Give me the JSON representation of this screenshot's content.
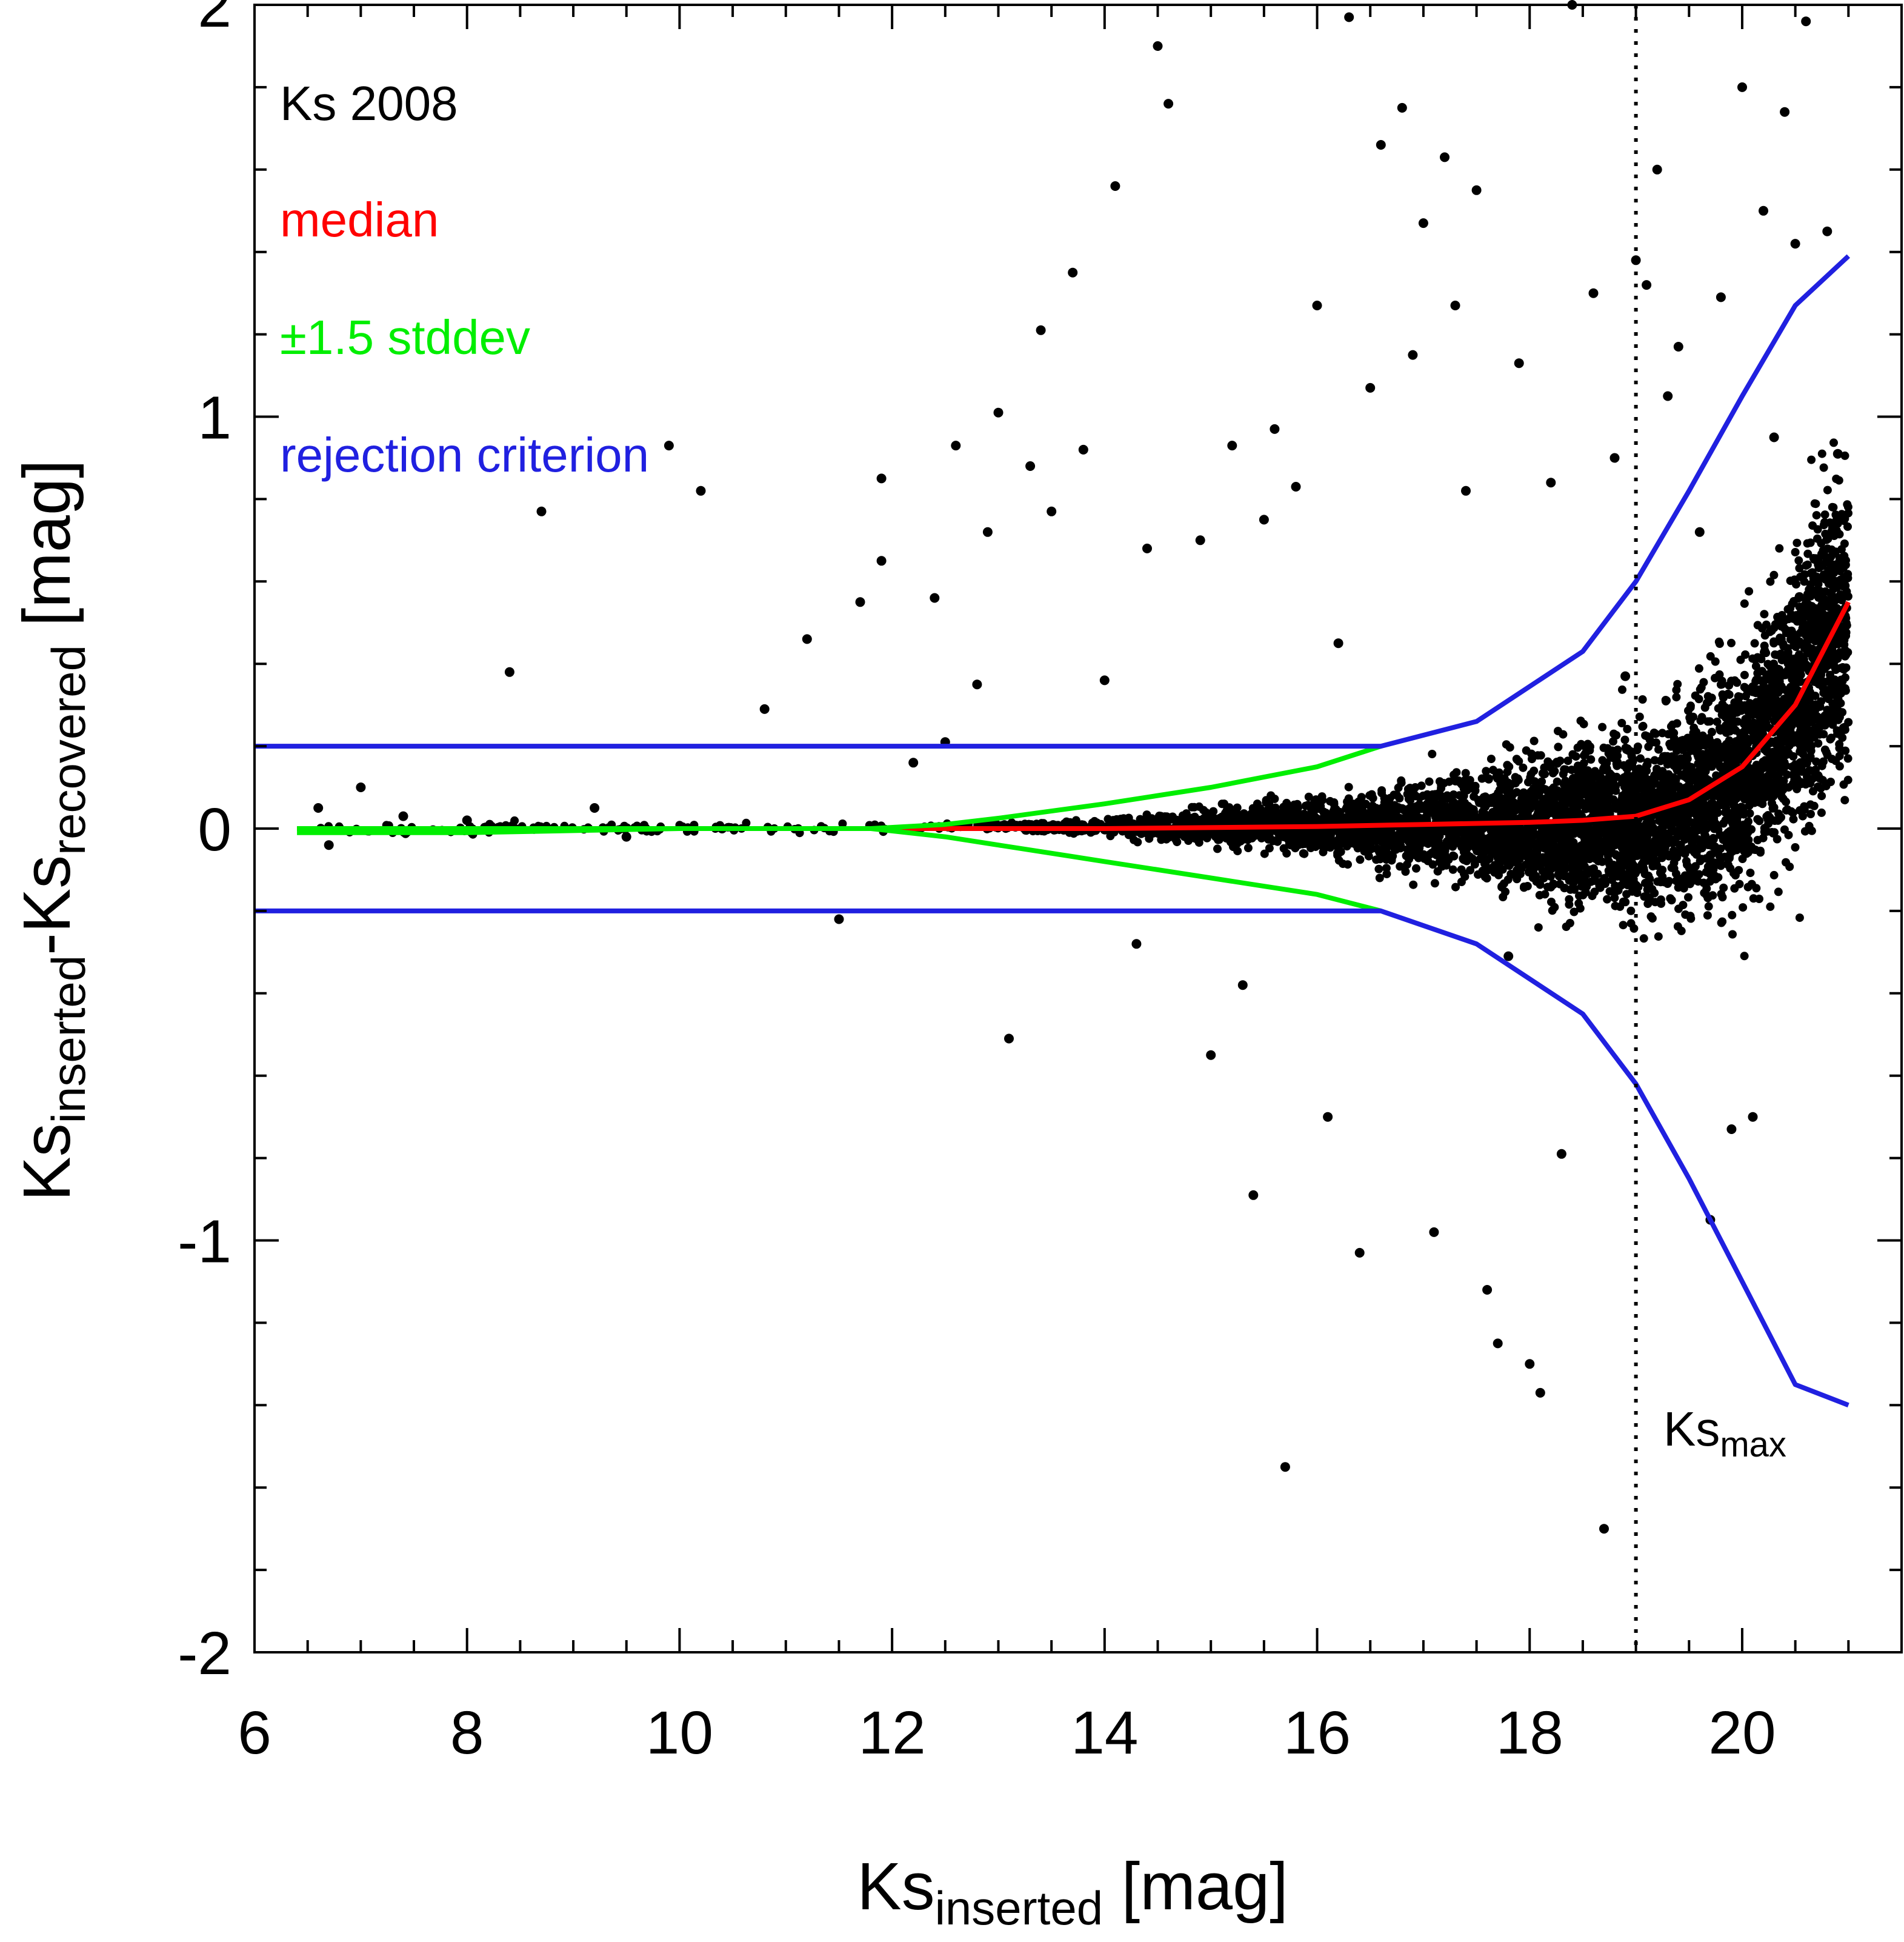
{
  "chart_data": {
    "type": "scatter",
    "xlim": [
      6,
      21.5
    ],
    "ylim": [
      -2,
      2
    ],
    "x_ticks": [
      6,
      8,
      10,
      12,
      14,
      16,
      18,
      20
    ],
    "x_tick_labels": [
      "6",
      "8",
      "10",
      "12",
      "14",
      "16",
      "18",
      "20"
    ],
    "y_ticks": [
      -2,
      -1,
      0,
      1,
      2
    ],
    "y_tick_labels": [
      "-2",
      "-1",
      "0",
      "1",
      "2"
    ],
    "xlabel": {
      "main": "Ks",
      "sub": "inserted",
      "unit": " [mag]"
    },
    "ylabel": {
      "p1": "Ks",
      "sub1": "inserted",
      "p2": "-Ks",
      "sub2": "recovered",
      "unit": " [mag]"
    },
    "legend": {
      "placement": "top-left",
      "entries": [
        {
          "text": "Ks 2008",
          "color": "#000000"
        },
        {
          "text": "median",
          "color": "#ff0000"
        },
        {
          "text": "±1.5 stddev",
          "color": "#00ee00"
        },
        {
          "text": "rejection criterion",
          "color": "#2020e0"
        }
      ]
    },
    "vertical_line": {
      "x": 19.0,
      "style": "dotted",
      "label_main": "Ks",
      "label_sub": "max"
    },
    "series": [
      {
        "name": "median",
        "color": "#ff0000",
        "x": [
          6.4,
          8,
          10,
          12,
          14,
          16,
          17,
          18,
          18.5,
          19,
          19.5,
          20,
          20.5,
          21
        ],
        "y": [
          0.0,
          0.0,
          0.0,
          0.0,
          0.0,
          0.005,
          0.01,
          0.015,
          0.02,
          0.03,
          0.07,
          0.15,
          0.3,
          0.55
        ]
      },
      {
        "name": "+1.5 stddev",
        "color": "#00ee00",
        "x": [
          6.4,
          8,
          10,
          11,
          11.8,
          12.5,
          13,
          14,
          15,
          16,
          16.6
        ],
        "y": [
          0.0,
          0.0,
          0.0,
          0.0,
          0.0,
          0.01,
          0.025,
          0.06,
          0.1,
          0.15,
          0.2
        ]
      },
      {
        "name": "-1.5 stddev",
        "color": "#00ee00",
        "x": [
          6.4,
          8,
          10,
          11,
          11.8,
          12.5,
          13,
          14,
          15,
          16,
          16.6
        ],
        "y": [
          -0.01,
          -0.01,
          0.0,
          0.0,
          0.0,
          -0.02,
          -0.04,
          -0.08,
          -0.12,
          -0.16,
          -0.2
        ]
      },
      {
        "name": "upper rejection criterion",
        "color": "#2020e0",
        "x": [
          6,
          8,
          10,
          12,
          14,
          16,
          16.6,
          17.5,
          18.5,
          19,
          19.5,
          20,
          20.5,
          21
        ],
        "y": [
          0.2,
          0.2,
          0.2,
          0.2,
          0.2,
          0.2,
          0.2,
          0.26,
          0.43,
          0.6,
          0.82,
          1.05,
          1.27,
          1.39
        ]
      },
      {
        "name": "lower rejection criterion",
        "color": "#2020e0",
        "x": [
          6,
          8,
          10,
          12,
          14,
          16,
          16.6,
          17.5,
          18.5,
          19,
          19.5,
          20,
          20.5,
          21
        ],
        "y": [
          -0.2,
          -0.2,
          -0.2,
          -0.2,
          -0.2,
          -0.2,
          -0.2,
          -0.28,
          -0.45,
          -0.62,
          -0.85,
          -1.1,
          -1.35,
          -1.4
        ]
      }
    ],
    "scatter_points": {
      "name": "Ks 2008",
      "color": "#000000",
      "x": [
        6.6,
        6.7,
        6.8,
        7.0,
        7.4,
        8.0,
        8.4,
        8.7,
        9.2,
        9.5,
        9.9,
        10.2,
        10.4,
        10.8,
        11.2,
        11.5,
        11.7,
        11.9,
        11.9,
        12.4,
        12.5,
        12.6,
        12.8,
        12.9,
        13.0,
        13.1,
        13.4,
        13.5,
        13.7,
        13.8,
        14.0,
        14.1,
        14.3,
        14.4,
        14.5,
        14.6,
        15.0,
        15.2,
        15.4,
        15.5,
        15.7,
        15.8,
        16.0,
        16.1,
        16.3,
        16.4,
        16.5,
        16.6,
        16.8,
        17.0,
        17.2,
        17.3,
        17.5,
        17.7,
        17.9,
        18.1,
        18.2,
        18.4,
        18.6,
        18.7,
        18.8,
        19.0,
        19.2,
        19.4,
        19.6,
        19.8,
        20.0,
        20.2,
        20.4,
        20.6,
        20.8,
        20.9,
        15.6,
        17.1,
        18.0,
        16.9,
        17.6,
        19.3,
        20.3,
        14.9,
        15.3,
        16.2,
        17.4,
        18.3,
        19.1,
        19.7,
        20.5,
        13.3,
        12.2,
        17.8,
        18.9,
        20.1,
        19.9,
        20.7
      ],
      "y": [
        0.05,
        -0.04,
        0.0,
        0.1,
        0.03,
        0.02,
        0.38,
        0.77,
        0.05,
        -0.02,
        0.93,
        0.82,
        0.0,
        0.29,
        0.46,
        -0.22,
        0.55,
        0.85,
        0.65,
        0.56,
        0.21,
        0.93,
        0.35,
        0.72,
        1.01,
        -0.51,
        1.21,
        0.77,
        1.35,
        0.92,
        0.36,
        1.56,
        -0.28,
        0.68,
        1.9,
        1.76,
        -0.55,
        0.93,
        -0.89,
        0.75,
        -1.55,
        0.83,
        1.27,
        -0.7,
        1.97,
        -1.03,
        1.07,
        1.66,
        1.75,
        1.47,
        1.63,
        1.27,
        1.55,
        -1.25,
        1.13,
        -1.37,
        0.84,
        2.0,
        1.3,
        -1.7,
        0.9,
        1.38,
        1.6,
        1.17,
        0.72,
        1.29,
        1.8,
        1.5,
        1.74,
        1.96,
        1.45,
        0.91,
        0.97,
        -0.98,
        -1.3,
        1.15,
        -1.12,
        1.05,
        0.95,
        0.7,
        -0.38,
        0.45,
        0.82,
        -0.79,
        1.32,
        -0.95,
        1.42,
        0.88,
        0.16,
        -0.31,
        0.37,
        -0.7,
        -0.73,
        0.61
      ]
    }
  }
}
